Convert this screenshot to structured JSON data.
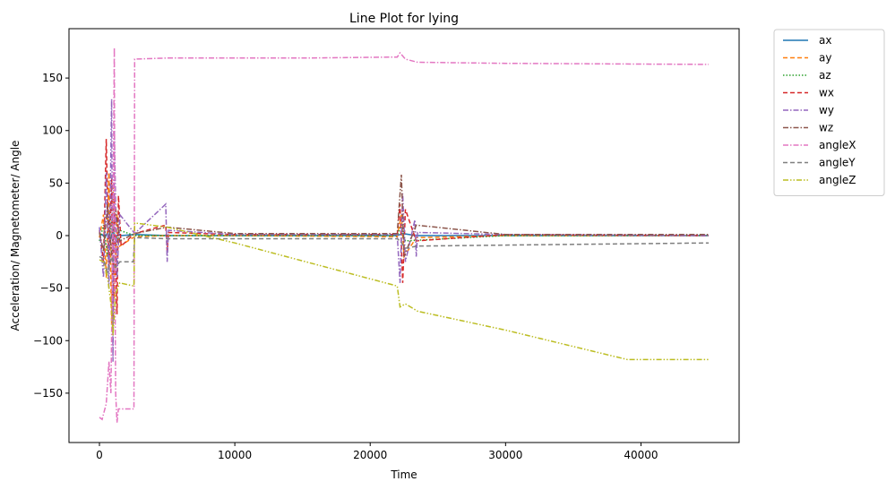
{
  "chart_data": {
    "type": "line",
    "title": "Line Plot for lying",
    "xlabel": "Time",
    "ylabel": "Acceleration/ Magnetometer/ Angle",
    "xlim": [
      -2250,
      47250
    ],
    "ylim": [
      -197,
      197
    ],
    "xticks": [
      0,
      10000,
      20000,
      30000,
      40000
    ],
    "yticks": [
      -150,
      -100,
      -50,
      0,
      50,
      100,
      150
    ],
    "legend_position": "outside-right",
    "grid": false,
    "series": [
      {
        "name": "ax",
        "color": "#1f77b4",
        "style": "solid",
        "points": [
          [
            0,
            0
          ],
          [
            200,
            1
          ],
          [
            400,
            -2
          ],
          [
            600,
            3
          ],
          [
            800,
            -4
          ],
          [
            1000,
            5
          ],
          [
            1200,
            -3
          ],
          [
            1400,
            2
          ],
          [
            1600,
            0
          ],
          [
            2600,
            1
          ],
          [
            5000,
            0
          ],
          [
            10000,
            0
          ],
          [
            22000,
            0
          ],
          [
            22400,
            2
          ],
          [
            23400,
            0
          ],
          [
            30000,
            0
          ],
          [
            45000,
            0
          ]
        ]
      },
      {
        "name": "ay",
        "color": "#ff7f0e",
        "style": "dashed",
        "points": [
          [
            0,
            -2
          ],
          [
            300,
            20
          ],
          [
            500,
            -40
          ],
          [
            700,
            60
          ],
          [
            900,
            -85
          ],
          [
            1000,
            50
          ],
          [
            1100,
            -60
          ],
          [
            1300,
            20
          ],
          [
            1500,
            -10
          ],
          [
            2600,
            -1
          ],
          [
            5000,
            0
          ],
          [
            10000,
            0
          ],
          [
            22000,
            -1
          ],
          [
            22300,
            20
          ],
          [
            22500,
            -20
          ],
          [
            23400,
            -2
          ],
          [
            30000,
            0
          ],
          [
            45000,
            0
          ]
        ]
      },
      {
        "name": "az",
        "color": "#2ca02c",
        "style": "dotted",
        "points": [
          [
            0,
            -5
          ],
          [
            300,
            10
          ],
          [
            600,
            -20
          ],
          [
            900,
            15
          ],
          [
            1200,
            -10
          ],
          [
            1500,
            5
          ],
          [
            2600,
            0
          ],
          [
            5000,
            0
          ],
          [
            10000,
            0
          ],
          [
            22000,
            0
          ],
          [
            22300,
            10
          ],
          [
            22600,
            -5
          ],
          [
            30000,
            0
          ],
          [
            45000,
            0
          ]
        ]
      },
      {
        "name": "wx",
        "color": "#d62728",
        "style": "dashed",
        "points": [
          [
            0,
            5
          ],
          [
            300,
            -25
          ],
          [
            500,
            92
          ],
          [
            700,
            -30
          ],
          [
            900,
            55
          ],
          [
            1000,
            -90
          ],
          [
            1100,
            40
          ],
          [
            1300,
            -75
          ],
          [
            1400,
            38
          ],
          [
            1600,
            -10
          ],
          [
            2600,
            2
          ],
          [
            4900,
            10
          ],
          [
            5000,
            -15
          ],
          [
            5100,
            3
          ],
          [
            10000,
            1
          ],
          [
            22000,
            1
          ],
          [
            22200,
            30
          ],
          [
            22400,
            -45
          ],
          [
            22600,
            25
          ],
          [
            23400,
            -5
          ],
          [
            30000,
            1
          ],
          [
            45000,
            0
          ]
        ]
      },
      {
        "name": "wy",
        "color": "#9467bd",
        "style": "dashdot",
        "points": [
          [
            0,
            8
          ],
          [
            300,
            -40
          ],
          [
            500,
            60
          ],
          [
            700,
            -50
          ],
          [
            900,
            130
          ],
          [
            1000,
            -120
          ],
          [
            1100,
            100
          ],
          [
            1300,
            -40
          ],
          [
            1500,
            20
          ],
          [
            2600,
            2
          ],
          [
            4900,
            30
          ],
          [
            5000,
            -25
          ],
          [
            5100,
            5
          ],
          [
            10000,
            1
          ],
          [
            22000,
            1
          ],
          [
            22200,
            -45
          ],
          [
            22400,
            40
          ],
          [
            22600,
            -25
          ],
          [
            23300,
            15
          ],
          [
            23400,
            -20
          ],
          [
            23500,
            3
          ],
          [
            30000,
            1
          ],
          [
            45000,
            0
          ]
        ]
      },
      {
        "name": "wz",
        "color": "#8c564b",
        "style": "dashdot",
        "points": [
          [
            0,
            3
          ],
          [
            300,
            -15
          ],
          [
            600,
            30
          ],
          [
            900,
            -20
          ],
          [
            1200,
            25
          ],
          [
            1500,
            -5
          ],
          [
            2600,
            2
          ],
          [
            5000,
            8
          ],
          [
            10000,
            2
          ],
          [
            22000,
            2
          ],
          [
            22300,
            58
          ],
          [
            22500,
            -20
          ],
          [
            23400,
            10
          ],
          [
            30000,
            1
          ],
          [
            45000,
            1
          ]
        ]
      },
      {
        "name": "angleX",
        "color": "#e377c2",
        "style": "dashdot",
        "points": [
          [
            0,
            -173
          ],
          [
            200,
            -175
          ],
          [
            500,
            -160
          ],
          [
            700,
            -120
          ],
          [
            850,
            -150
          ],
          [
            1000,
            10
          ],
          [
            1100,
            179
          ],
          [
            1150,
            -50
          ],
          [
            1200,
            -150
          ],
          [
            1300,
            -178
          ],
          [
            1400,
            -165
          ],
          [
            2550,
            -165
          ],
          [
            2600,
            168
          ],
          [
            5000,
            169
          ],
          [
            15000,
            169
          ],
          [
            22000,
            170
          ],
          [
            22200,
            174
          ],
          [
            22600,
            168
          ],
          [
            23500,
            165
          ],
          [
            30000,
            164
          ],
          [
            45000,
            163
          ]
        ]
      },
      {
        "name": "angleY",
        "color": "#7f7f7f",
        "style": "dashed",
        "points": [
          [
            0,
            -20
          ],
          [
            300,
            -22
          ],
          [
            600,
            -35
          ],
          [
            900,
            -20
          ],
          [
            1200,
            -30
          ],
          [
            1500,
            -25
          ],
          [
            2500,
            -25
          ],
          [
            2600,
            -2
          ],
          [
            5000,
            -3
          ],
          [
            22000,
            -3
          ],
          [
            22200,
            -5
          ],
          [
            22600,
            -12
          ],
          [
            23500,
            -10
          ],
          [
            30000,
            -9
          ],
          [
            45000,
            -7
          ]
        ]
      },
      {
        "name": "angleZ",
        "color": "#bcbd22",
        "style": "dashdotdot",
        "points": [
          [
            0,
            -23
          ],
          [
            300,
            -25
          ],
          [
            600,
            -40
          ],
          [
            900,
            -70
          ],
          [
            1000,
            -95
          ],
          [
            1200,
            -55
          ],
          [
            1500,
            -45
          ],
          [
            2550,
            -48
          ],
          [
            2600,
            12
          ],
          [
            5000,
            8
          ],
          [
            10000,
            -7
          ],
          [
            22000,
            -48
          ],
          [
            22200,
            -68
          ],
          [
            22600,
            -65
          ],
          [
            23500,
            -72
          ],
          [
            30000,
            -90
          ],
          [
            39000,
            -118
          ],
          [
            45000,
            -118
          ]
        ]
      }
    ]
  }
}
